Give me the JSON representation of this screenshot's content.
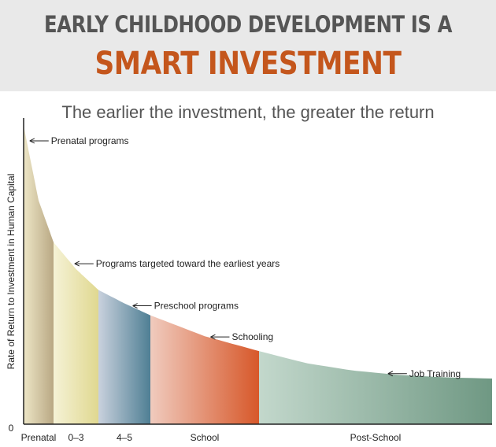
{
  "header": {
    "title_line1": "EARLY CHILDHOOD DEVELOPMENT IS A",
    "title_line2": "SMART INVESTMENT",
    "subtitle": "The earlier the investment, the greater the return"
  },
  "chart_data": {
    "type": "area",
    "title": "EARLY CHILDHOOD DEVELOPMENT IS A SMART INVESTMENT",
    "subtitle": "The earlier the investment, the greater the return",
    "ylabel": "Rate of Return to Investment in Human Capital",
    "xlabel": "",
    "y_origin_label": "0",
    "segments": [
      {
        "name": "Prenatal",
        "from": 0,
        "to": 1,
        "color_start": "#ede6c6",
        "color_end": "#b9a884"
      },
      {
        "name": "0–3",
        "from": 1,
        "to": 2,
        "color_start": "#f5f2d6",
        "color_end": "#e0d890"
      },
      {
        "name": "4–5",
        "from": 2,
        "to": 3,
        "color_start": "#c9d1dd",
        "color_end": "#4f7f94"
      },
      {
        "name": "School",
        "from": 3,
        "to": 5,
        "color_start": "#f0cbbe",
        "color_end": "#d7582a"
      },
      {
        "name": "Post-School",
        "from": 5,
        "to": 10,
        "color_start": "#c3d8cc",
        "color_end": "#6f9883"
      }
    ],
    "curve": {
      "x": [
        0,
        0.5,
        1,
        1.5,
        2,
        2.5,
        3,
        4,
        5,
        6,
        7,
        8,
        9,
        10
      ],
      "y": [
        100,
        75,
        61,
        52,
        45,
        40.5,
        36.5,
        29.5,
        24.5,
        20.5,
        18,
        16.5,
        15.7,
        15.3
      ]
    },
    "annotations": [
      {
        "text": "Prenatal programs",
        "x": 0.1
      },
      {
        "text": "Programs targeted toward the earliest years",
        "x": 1.4
      },
      {
        "text": "Preschool programs",
        "x": 2.6
      },
      {
        "text": "Schooling",
        "x": 4.05
      },
      {
        "text": "Job Training",
        "x": 7.7
      }
    ],
    "grid": false,
    "legend": "none"
  }
}
